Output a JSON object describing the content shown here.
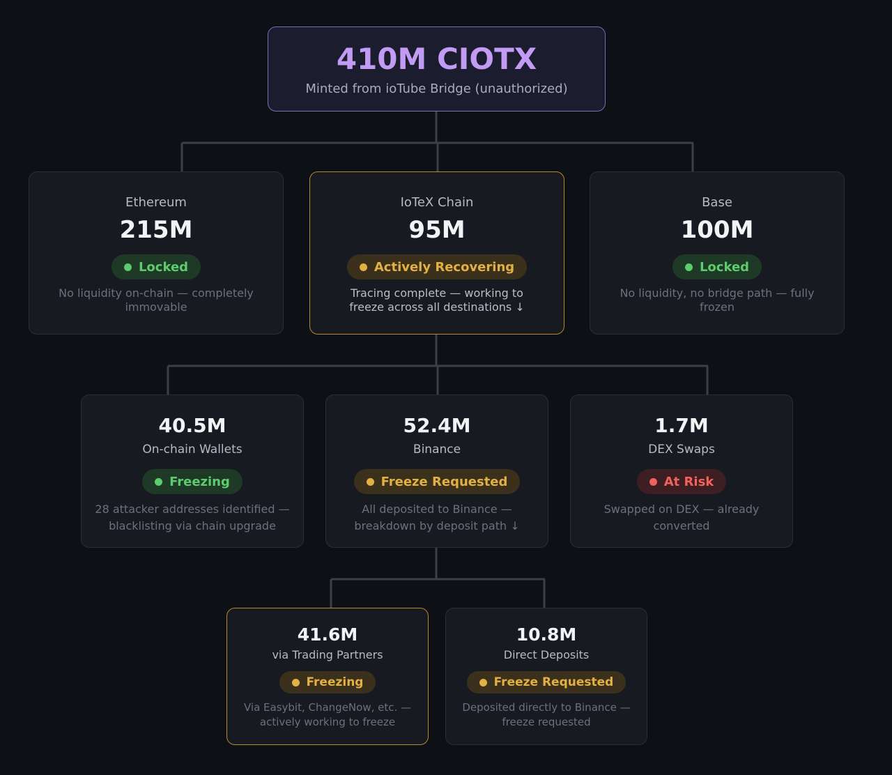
{
  "root": {
    "title": "410M CIOTX",
    "subtitle": "Minted from ioTube Bridge (unauthorized)"
  },
  "chains": [
    {
      "chain": "Ethereum",
      "amount": "215M",
      "status": "Locked",
      "note": "No liquidity on-chain — completely immovable"
    },
    {
      "chain": "IoTeX Chain",
      "amount": "95M",
      "status": "Actively Recovering",
      "note": "Tracing complete — working to freeze across all destinations ↓"
    },
    {
      "chain": "Base",
      "amount": "100M",
      "status": "Locked",
      "note": "No liquidity, no bridge path — fully frozen"
    }
  ],
  "iotex_breakdown": [
    {
      "amount": "40.5M",
      "label": "On-chain Wallets",
      "status": "Freezing",
      "note": "28 attacker addresses identified — blacklisting via chain upgrade"
    },
    {
      "amount": "52.4M",
      "label": "Binance",
      "status": "Freeze Requested",
      "note": "All deposited to Binance — breakdown by deposit path ↓"
    },
    {
      "amount": "1.7M",
      "label": "DEX Swaps",
      "status": "At Risk",
      "note": "Swapped on DEX — already converted"
    }
  ],
  "binance_breakdown": [
    {
      "amount": "41.6M",
      "label": "via Trading Partners",
      "status": "Freezing",
      "note": "Via Easybit, ChangeNow, etc. — actively working to freeze"
    },
    {
      "amount": "10.8M",
      "label": "Direct Deposits",
      "status": "Freeze Requested",
      "note": "Deposited directly to Binance — freeze requested"
    }
  ],
  "colors": {
    "background": "#0d1015",
    "root_accent": "#c29bf5",
    "locked_green": "#5ccc6d",
    "amber": "#e3b043",
    "risk_red": "#f0625a",
    "active_border": "#b8892e"
  }
}
